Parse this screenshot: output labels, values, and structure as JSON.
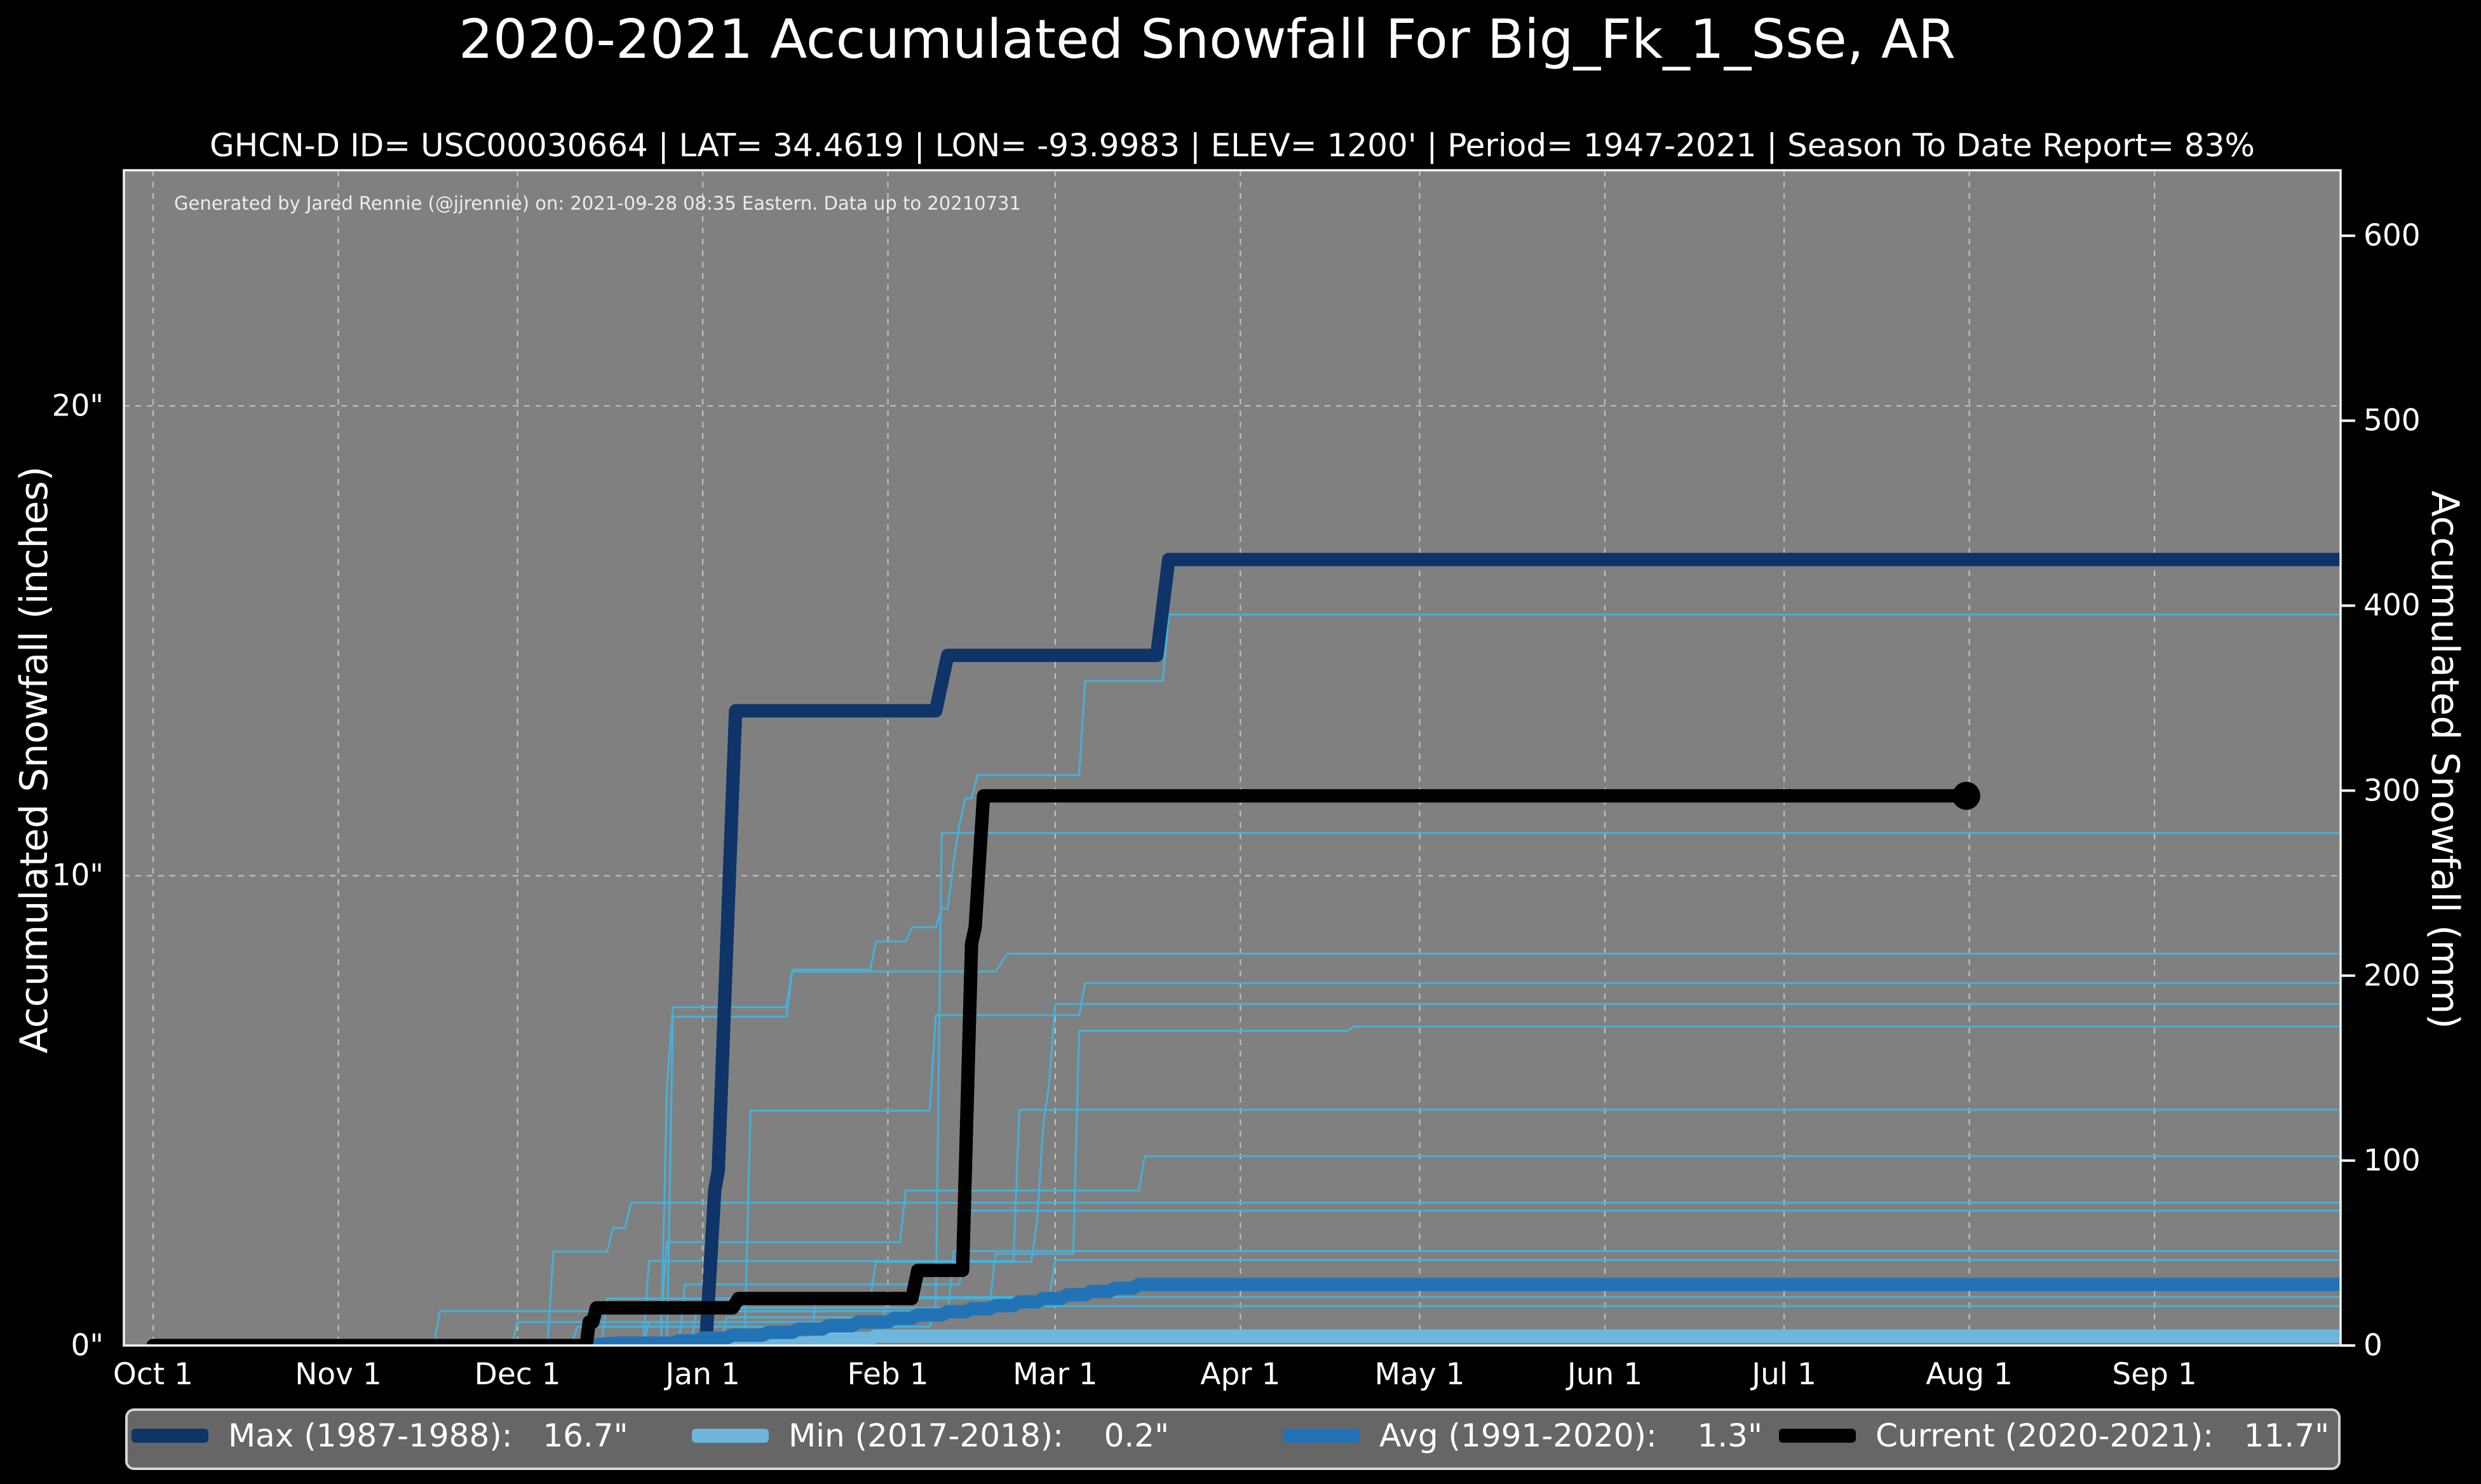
{
  "title": "2020-2021 Accumulated Snowfall For Big_Fk_1_Sse, AR",
  "subtitle": "GHCN-D ID= USC00030664 | LAT= 34.4619 | LON= -93.9983 | ELEV= 1200' | Period= 1947-2021 | Season To Date Report= 83%",
  "annotation": "Generated by Jared Rennie (@jjrennie) on: 2021-09-28 08:35 Eastern. Data up to 20210731",
  "colors": {
    "figure_background": "#000000",
    "plot_background": "#808080",
    "spine": "#f2f2f2",
    "grid": "#d0d0d0",
    "text": "#ffffff",
    "max_line": "#0e3468",
    "min_line": "#6db6de",
    "avg_line": "#2273b5",
    "current_line": "#000000",
    "history_line": "#44b2dc",
    "legend_background": "#666666",
    "legend_border": "#d4d4d4"
  },
  "axes": {
    "left_label": "Accumulated Snowfall (inches)",
    "right_label": "Accumulated Snowfall (mm)"
  },
  "legend": {
    "items": [
      {
        "label": "Max (1987-1988):",
        "value": "16.7\"",
        "color": "#0e3468",
        "x": 207,
        "gap": "   "
      },
      {
        "label": "Min (2017-2018):",
        "value": "0.2\"",
        "color": "#6db6de",
        "x": 1089,
        "gap": "    "
      },
      {
        "label": "Avg (1991-2020):",
        "value": "1.3\"",
        "color": "#2273b5",
        "x": 2019,
        "gap": "    "
      },
      {
        "label": "Current (2020-2021):",
        "value": "11.7\"",
        "color": "#000000",
        "x": 2800,
        "gap": "   "
      }
    ]
  },
  "chart_data": {
    "type": "line",
    "x_unit": "days since Oct 1",
    "xlim": [
      -4.89,
      366.15
    ],
    "ylim_inches": [
      0,
      25.016
    ],
    "mm_per_inch": 25.4,
    "grid": true,
    "x_ticks": [
      {
        "day": 0,
        "label": "Oct 1"
      },
      {
        "day": 31,
        "label": "Nov 1"
      },
      {
        "day": 61,
        "label": "Dec 1"
      },
      {
        "day": 92,
        "label": "Jan 1"
      },
      {
        "day": 123,
        "label": "Feb 1"
      },
      {
        "day": 151,
        "label": "Mar 1"
      },
      {
        "day": 182,
        "label": "Apr 1"
      },
      {
        "day": 212,
        "label": "May 1"
      },
      {
        "day": 243,
        "label": "Jun 1"
      },
      {
        "day": 273,
        "label": "Jul 1"
      },
      {
        "day": 304,
        "label": "Aug 1"
      },
      {
        "day": 335,
        "label": "Sep 1"
      }
    ],
    "y_ticks_left": [
      {
        "inches": 0,
        "label": "0\""
      },
      {
        "inches": 10,
        "label": "10\""
      },
      {
        "inches": 20,
        "label": "20\""
      }
    ],
    "y_grid_inches": [
      10,
      20
    ],
    "y_ticks_right_mm": [
      0,
      100,
      200,
      300,
      400,
      500,
      600
    ],
    "series": [
      {
        "name": "Max (1987-1988)",
        "total_inches": 16.7,
        "role": "max",
        "width": 21,
        "points": [
          [
            0,
            0
          ],
          [
            92.5,
            0
          ],
          [
            94,
            3.3
          ],
          [
            94.6,
            3.72
          ],
          [
            97.5,
            13.51
          ],
          [
            131,
            13.51
          ],
          [
            133,
            14.69
          ],
          [
            168,
            14.69
          ],
          [
            170,
            16.73
          ],
          [
            366.2,
            16.73
          ]
        ]
      },
      {
        "name": "Min (2017-2018)",
        "total_inches": 0.2,
        "role": "min",
        "width": 21,
        "points": [
          [
            0,
            0
          ],
          [
            106,
            0
          ],
          [
            107,
            0.05
          ],
          [
            110,
            0.05
          ],
          [
            111,
            0.15
          ],
          [
            120,
            0.15
          ],
          [
            121,
            0.2
          ],
          [
            366.2,
            0.2
          ]
        ]
      },
      {
        "name": "Avg (1991-2020)",
        "total_inches": 1.3,
        "role": "avg",
        "width": 21,
        "points": [
          [
            0,
            0
          ],
          [
            74,
            0
          ],
          [
            75,
            0.03
          ],
          [
            78,
            0.05
          ],
          [
            87,
            0.05
          ],
          [
            88,
            0.1
          ],
          [
            91,
            0.1
          ],
          [
            92,
            0.16
          ],
          [
            96,
            0.16
          ],
          [
            97,
            0.22
          ],
          [
            102,
            0.22
          ],
          [
            103,
            0.28
          ],
          [
            107,
            0.28
          ],
          [
            108,
            0.35
          ],
          [
            112,
            0.35
          ],
          [
            113,
            0.42
          ],
          [
            117,
            0.42
          ],
          [
            118,
            0.5
          ],
          [
            123,
            0.5
          ],
          [
            124,
            0.58
          ],
          [
            127,
            0.58
          ],
          [
            128,
            0.65
          ],
          [
            132,
            0.65
          ],
          [
            133,
            0.72
          ],
          [
            136,
            0.72
          ],
          [
            137,
            0.78
          ],
          [
            140,
            0.78
          ],
          [
            141,
            0.85
          ],
          [
            144,
            0.85
          ],
          [
            145,
            0.93
          ],
          [
            148,
            0.93
          ],
          [
            149,
            1.0
          ],
          [
            152,
            1.0
          ],
          [
            153,
            1.08
          ],
          [
            156,
            1.08
          ],
          [
            157,
            1.15
          ],
          [
            160,
            1.15
          ],
          [
            161,
            1.22
          ],
          [
            164,
            1.22
          ],
          [
            165,
            1.3
          ],
          [
            366.2,
            1.3
          ]
        ]
      },
      {
        "name": "Current (2020-2021)",
        "total_inches": 11.7,
        "role": "current",
        "width": 21,
        "end_marker_day": 303.5,
        "end_marker_radius": 22,
        "points": [
          [
            0,
            0
          ],
          [
            72.5,
            0
          ],
          [
            73,
            0.5
          ],
          [
            73.6,
            0.5
          ],
          [
            74.2,
            0.8
          ],
          [
            97,
            0.8
          ],
          [
            98,
            1.0
          ],
          [
            127,
            1.0
          ],
          [
            128,
            1.6
          ],
          [
            135.5,
            1.6
          ],
          [
            137,
            8.55
          ],
          [
            137.6,
            8.9
          ],
          [
            139,
            11.7
          ],
          [
            303.5,
            11.7
          ]
        ]
      }
    ],
    "history_series": [
      {
        "total_inches": 15.56,
        "points": [
          [
            0,
            0
          ],
          [
            85,
            0
          ],
          [
            86,
            5.5
          ],
          [
            87,
            7.2
          ],
          [
            106,
            7.2
          ],
          [
            107,
            8.0
          ],
          [
            120,
            8.0
          ],
          [
            121,
            8.6
          ],
          [
            126,
            8.6
          ],
          [
            127,
            8.9
          ],
          [
            131,
            8.9
          ],
          [
            132,
            9.3
          ],
          [
            133,
            9.3
          ],
          [
            134,
            10.3
          ],
          [
            135,
            11.1
          ],
          [
            136,
            11.65
          ],
          [
            137,
            11.65
          ],
          [
            138,
            12.14
          ],
          [
            155,
            12.14
          ],
          [
            156,
            14.15
          ],
          [
            169,
            14.15
          ],
          [
            170,
            15.56
          ],
          [
            366.2,
            15.56
          ]
        ]
      },
      {
        "total_inches": 10.91,
        "points": [
          [
            0,
            0
          ],
          [
            70,
            0
          ],
          [
            71,
            0.4
          ],
          [
            130,
            0.4
          ],
          [
            131,
            0.8
          ],
          [
            132,
            10.91
          ],
          [
            366.2,
            10.91
          ]
        ]
      },
      {
        "total_inches": 8.34,
        "points": [
          [
            0,
            0
          ],
          [
            86,
            0
          ],
          [
            87,
            7.0
          ],
          [
            106,
            7.0
          ],
          [
            107,
            7.96
          ],
          [
            141,
            7.96
          ],
          [
            143,
            8.34
          ],
          [
            366.2,
            8.34
          ]
        ]
      },
      {
        "total_inches": 7.71,
        "points": [
          [
            0,
            0
          ],
          [
            99,
            0
          ],
          [
            100,
            5.0
          ],
          [
            130,
            5.0
          ],
          [
            131,
            7.03
          ],
          [
            155,
            7.03
          ],
          [
            156,
            7.71
          ],
          [
            366.2,
            7.71
          ]
        ]
      },
      {
        "total_inches": 7.27,
        "points": [
          [
            0,
            0
          ],
          [
            75,
            0
          ],
          [
            76,
            1.0
          ],
          [
            120,
            1.0
          ],
          [
            121,
            1.78
          ],
          [
            147,
            1.78
          ],
          [
            148,
            2.7
          ],
          [
            149,
            4.7
          ],
          [
            150,
            5.6
          ],
          [
            151,
            7.27
          ],
          [
            366.2,
            7.27
          ]
        ]
      },
      {
        "total_inches": 6.79,
        "points": [
          [
            0,
            0
          ],
          [
            90,
            0
          ],
          [
            91,
            0.8
          ],
          [
            140,
            0.8
          ],
          [
            141,
            1.95
          ],
          [
            154,
            1.95
          ],
          [
            155,
            6.7
          ],
          [
            200,
            6.7
          ],
          [
            201,
            6.79
          ],
          [
            366.2,
            6.79
          ]
        ]
      },
      {
        "total_inches": 5.02,
        "points": [
          [
            0,
            0
          ],
          [
            82,
            0
          ],
          [
            83,
            1.8
          ],
          [
            144,
            1.8
          ],
          [
            145,
            5.02
          ],
          [
            366.2,
            5.02
          ]
        ]
      },
      {
        "total_inches": 4.03,
        "points": [
          [
            0,
            0
          ],
          [
            60,
            0
          ],
          [
            61,
            0.5
          ],
          [
            85,
            0.5
          ],
          [
            86,
            2.2
          ],
          [
            125,
            2.2
          ],
          [
            126,
            3.3
          ],
          [
            165,
            3.3
          ],
          [
            166,
            4.03
          ],
          [
            366.2,
            4.03
          ]
        ]
      },
      {
        "total_inches": 3.04,
        "points": [
          [
            0,
            0
          ],
          [
            66,
            0
          ],
          [
            67,
            2.0
          ],
          [
            76,
            2.0
          ],
          [
            77,
            2.5
          ],
          [
            79,
            2.5
          ],
          [
            80,
            3.04
          ],
          [
            366.2,
            3.04
          ]
        ]
      },
      {
        "total_inches": 2.87,
        "points": [
          [
            0,
            0
          ],
          [
            88,
            0
          ],
          [
            89,
            1.3
          ],
          [
            135,
            1.3
          ],
          [
            136,
            2.87
          ],
          [
            366.2,
            2.87
          ]
        ]
      },
      {
        "total_inches": 2.01,
        "points": [
          [
            0,
            0
          ],
          [
            95,
            0
          ],
          [
            96,
            0.6
          ],
          [
            133,
            0.6
          ],
          [
            134,
            2.01
          ],
          [
            366.2,
            2.01
          ]
        ]
      },
      {
        "total_inches": 1.82,
        "points": [
          [
            0,
            0
          ],
          [
            110,
            0
          ],
          [
            111,
            1.0
          ],
          [
            150,
            1.0
          ],
          [
            151,
            1.82
          ],
          [
            366.2,
            1.82
          ]
        ]
      },
      {
        "total_inches": 1.03,
        "points": [
          [
            0,
            0
          ],
          [
            82,
            0
          ],
          [
            83,
            0.5
          ],
          [
            122,
            0.5
          ],
          [
            123,
            1.03
          ],
          [
            366.2,
            1.03
          ]
        ]
      },
      {
        "total_inches": 0.84,
        "points": [
          [
            0,
            0
          ],
          [
            47,
            0
          ],
          [
            48,
            0.73
          ],
          [
            140,
            0.73
          ],
          [
            141,
            0.84
          ],
          [
            366.2,
            0.84
          ]
        ]
      }
    ]
  }
}
